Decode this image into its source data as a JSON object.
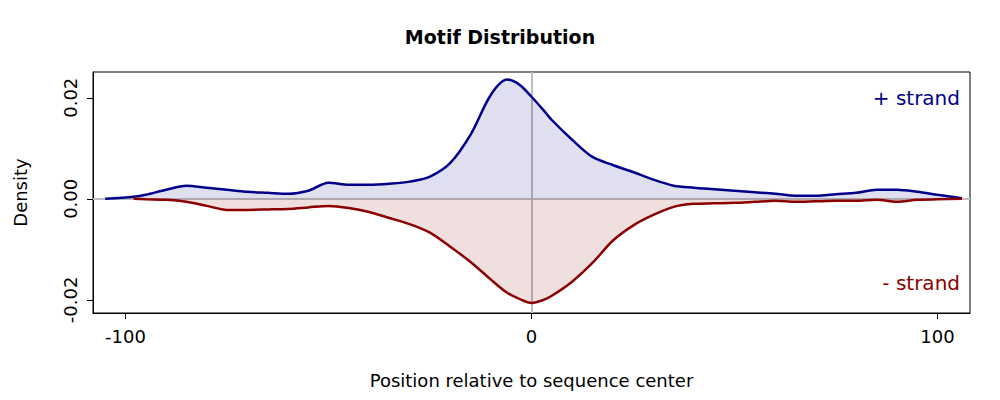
{
  "chart_data": {
    "type": "area",
    "title": "Motif Distribution",
    "xlabel": "Position relative to sequence center",
    "ylabel": "Density",
    "x": [
      -105,
      -98,
      -95,
      -90,
      -85,
      -80,
      -75,
      -70,
      -65,
      -60,
      -55,
      -50,
      -45,
      -40,
      -35,
      -30,
      -25,
      -20,
      -15,
      -10,
      -6,
      -3,
      0,
      3,
      5,
      10,
      15,
      20,
      25,
      30,
      35,
      40,
      45,
      50,
      55,
      60,
      65,
      70,
      75,
      80,
      85,
      90,
      95,
      100,
      106
    ],
    "series": [
      {
        "name": "+ strand",
        "color": "#00008b",
        "values": [
          0,
          0.0004,
          0.0008,
          0.0018,
          0.0026,
          0.0022,
          0.0018,
          0.0014,
          0.0012,
          0.001,
          0.0016,
          0.0032,
          0.0028,
          0.0028,
          0.003,
          0.0034,
          0.0044,
          0.0071,
          0.0127,
          0.0206,
          0.0236,
          0.0226,
          0.0202,
          0.0175,
          0.0156,
          0.0117,
          0.0083,
          0.0067,
          0.0053,
          0.0038,
          0.0026,
          0.0022,
          0.0019,
          0.0016,
          0.0013,
          0.001,
          0.0006,
          0.0006,
          0.0009,
          0.0012,
          0.0018,
          0.0018,
          0.0014,
          0.0008,
          0.0001
        ]
      },
      {
        "name": "- strand",
        "color": "#8b0000",
        "values": [
          null,
          0,
          -0.0001,
          -0.0002,
          -0.0006,
          -0.0014,
          -0.0022,
          -0.0022,
          -0.0021,
          -0.002,
          -0.0017,
          -0.0014,
          -0.0018,
          -0.0026,
          -0.0038,
          -0.005,
          -0.0067,
          -0.0095,
          -0.0125,
          -0.016,
          -0.0186,
          -0.0198,
          -0.0206,
          -0.02,
          -0.0192,
          -0.0164,
          -0.0127,
          -0.0083,
          -0.0053,
          -0.0032,
          -0.0016,
          -0.001,
          -0.0009,
          -0.0008,
          -0.0006,
          -0.0004,
          -0.0006,
          -0.0005,
          -0.0004,
          -0.0004,
          -0.0002,
          -0.0006,
          -0.0002,
          -0.0001,
          0
        ]
      }
    ],
    "xlim": [
      -108,
      108
    ],
    "xticks": [
      -100,
      0,
      100
    ],
    "ylim": [
      -0.0226,
      0.0251
    ],
    "yticks": [
      -0.02,
      {
        "value": 0,
        "label": "0.00"
      },
      0.02
    ],
    "grid": false
  }
}
